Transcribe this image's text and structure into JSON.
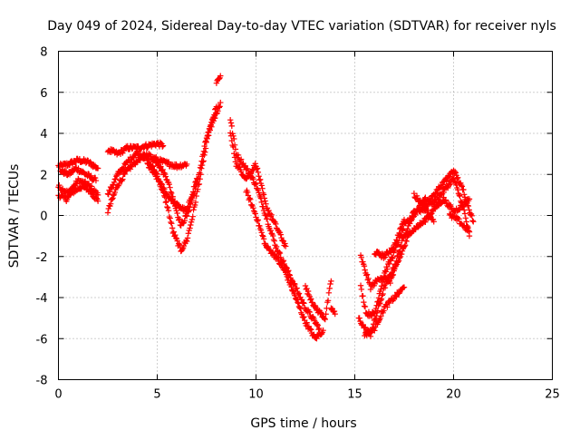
{
  "chart_data": {
    "type": "scatter",
    "title": "Day 049 of 2024, Sidereal Day-to-day VTEC variation (SDTVAR) for receiver nyls",
    "xlabel": "GPS time / hours",
    "ylabel": "SDTVAR / TECUs",
    "xlim": [
      0,
      25
    ],
    "ylim": [
      -8,
      8
    ],
    "xticks": [
      0,
      5,
      10,
      15,
      20,
      25
    ],
    "yticks": [
      -8,
      -6,
      -4,
      -2,
      0,
      2,
      4,
      6,
      8
    ],
    "xtick_labels": [
      "0",
      "5",
      "10",
      "15",
      "20",
      "25"
    ],
    "ytick_labels": [
      "-8",
      "-6",
      "-4",
      "-2",
      "0",
      "2",
      "4",
      "6",
      "8"
    ],
    "grid": true,
    "marker": "+",
    "color": "#ff0000",
    "series": [
      {
        "name": "SDTVAR",
        "tracks": [
          [
            [
              0,
              2.4
            ],
            [
              0.5,
              2.5
            ],
            [
              1.0,
              2.7
            ],
            [
              1.5,
              2.6
            ],
            [
              2.0,
              2.3
            ]
          ],
          [
            [
              0,
              1.4
            ],
            [
              0.5,
              1.1
            ],
            [
              1.0,
              1.7
            ],
            [
              1.5,
              1.5
            ],
            [
              2.0,
              1.0
            ]
          ],
          [
            [
              0,
              1.0
            ],
            [
              0.4,
              0.8
            ],
            [
              0.8,
              1.2
            ],
            [
              1.2,
              1.4
            ],
            [
              1.6,
              1.2
            ],
            [
              2.0,
              0.7
            ]
          ],
          [
            [
              0.1,
              2.2
            ],
            [
              0.5,
              2.0
            ],
            [
              0.9,
              2.3
            ],
            [
              1.4,
              2.0
            ],
            [
              1.9,
              1.7
            ]
          ],
          [
            [
              2.5,
              3.2
            ],
            [
              3.0,
              3.0
            ],
            [
              3.5,
              3.3
            ],
            [
              4.0,
              3.3
            ],
            [
              4.5,
              3.4
            ],
            [
              5.0,
              3.5
            ],
            [
              5.3,
              3.4
            ]
          ],
          [
            [
              2.5,
              0.2
            ],
            [
              3.0,
              1.5
            ],
            [
              3.5,
              2.2
            ],
            [
              4.0,
              2.7
            ],
            [
              4.5,
              3.0
            ],
            [
              5.0,
              2.6
            ],
            [
              5.5,
              1.8
            ],
            [
              5.9,
              0.5
            ],
            [
              6.2,
              -0.5
            ],
            [
              6.5,
              0.0
            ],
            [
              7.0,
              1.5
            ],
            [
              7.5,
              3.8
            ],
            [
              8.0,
              5.0
            ],
            [
              8.2,
              5.5
            ]
          ],
          [
            [
              2.5,
              1.0
            ],
            [
              3.0,
              2.0
            ],
            [
              3.5,
              2.6
            ],
            [
              4.0,
              3.1
            ],
            [
              4.5,
              2.7
            ],
            [
              5.0,
              2.0
            ],
            [
              5.5,
              0.5
            ],
            [
              5.8,
              -0.8
            ],
            [
              6.2,
              -1.7
            ],
            [
              6.5,
              -1.2
            ],
            [
              6.8,
              0.0
            ],
            [
              7.2,
              2.0
            ],
            [
              7.6,
              4.0
            ],
            [
              8.0,
              5.3
            ]
          ],
          [
            [
              4.5,
              2.5
            ],
            [
              5.0,
              1.8
            ],
            [
              5.5,
              1.0
            ],
            [
              6.0,
              0.5
            ],
            [
              6.5,
              0.2
            ],
            [
              7.0,
              1.8
            ]
          ],
          [
            [
              4.8,
              2.8
            ],
            [
              5.3,
              2.6
            ],
            [
              6.0,
              2.4
            ],
            [
              6.5,
              2.5
            ]
          ],
          [
            [
              8.0,
              6.5
            ],
            [
              8.2,
              6.8
            ]
          ],
          [
            [
              8.7,
              4.7
            ],
            [
              9.0,
              3.0
            ],
            [
              9.5,
              2.3
            ],
            [
              10.0,
              1.5
            ],
            [
              10.5,
              0.0
            ],
            [
              11.0,
              -1.5
            ],
            [
              11.5,
              -2.5
            ],
            [
              12.0,
              -3.5
            ],
            [
              12.5,
              -4.5
            ],
            [
              13.0,
              -5.2
            ],
            [
              13.2,
              -5.5
            ]
          ],
          [
            [
              8.7,
              4.0
            ],
            [
              9.0,
              2.5
            ],
            [
              9.5,
              1.8
            ],
            [
              10.0,
              2.5
            ],
            [
              10.5,
              0.5
            ],
            [
              11.0,
              -0.5
            ],
            [
              11.5,
              -1.5
            ]
          ],
          [
            [
              9.5,
              1.2
            ],
            [
              10.0,
              0.0
            ],
            [
              10.5,
              -1.5
            ],
            [
              11.0,
              -2.0
            ],
            [
              11.5,
              -2.8
            ],
            [
              12.0,
              -4.0
            ],
            [
              12.5,
              -5.2
            ],
            [
              13.0,
              -6.0
            ],
            [
              13.4,
              -5.6
            ]
          ],
          [
            [
              12.5,
              -3.5
            ],
            [
              13.0,
              -4.5
            ],
            [
              13.5,
              -5.0
            ],
            [
              13.8,
              -3.2
            ]
          ],
          [
            [
              13.8,
              -4.5
            ],
            [
              14.0,
              -4.8
            ]
          ],
          [
            [
              15.2,
              -5.0
            ],
            [
              15.5,
              -5.5
            ],
            [
              15.8,
              -5.8
            ],
            [
              16.2,
              -4.5
            ],
            [
              16.5,
              -3.5
            ],
            [
              17.0,
              -2.5
            ],
            [
              17.5,
              -1.0
            ],
            [
              18.0,
              0.2
            ],
            [
              18.5,
              0.3
            ],
            [
              19.0,
              1.0
            ],
            [
              19.5,
              1.6
            ],
            [
              20.0,
              2.2
            ],
            [
              20.5,
              1.2
            ],
            [
              21.0,
              -0.3
            ]
          ],
          [
            [
              15.3,
              -3.5
            ],
            [
              15.6,
              -4.8
            ],
            [
              16.0,
              -4.8
            ],
            [
              16.5,
              -2.8
            ],
            [
              17.0,
              -1.8
            ],
            [
              17.5,
              -0.5
            ],
            [
              18.0,
              0.0
            ],
            [
              18.5,
              0.8
            ],
            [
              19.0,
              0.6
            ],
            [
              19.5,
              1.2
            ],
            [
              20.0,
              1.8
            ],
            [
              20.5,
              0.4
            ],
            [
              20.8,
              -1.0
            ]
          ],
          [
            [
              15.3,
              -2.0
            ],
            [
              15.8,
              -3.5
            ],
            [
              16.3,
              -3.0
            ],
            [
              16.8,
              -3.2
            ],
            [
              17.3,
              -2.0
            ],
            [
              17.8,
              -0.8
            ],
            [
              18.5,
              -0.3
            ],
            [
              19.0,
              0.3
            ],
            [
              19.5,
              0.8
            ],
            [
              20.0,
              0.2
            ],
            [
              20.5,
              0.5
            ],
            [
              20.8,
              0.8
            ]
          ],
          [
            [
              15.5,
              -5.8
            ],
            [
              16.0,
              -5.5
            ],
            [
              16.5,
              -4.5
            ],
            [
              17.0,
              -4.0
            ],
            [
              17.5,
              -3.5
            ]
          ],
          [
            [
              16.0,
              -1.8
            ],
            [
              16.5,
              -2.0
            ],
            [
              17.0,
              -1.5
            ],
            [
              17.5,
              -0.2
            ]
          ],
          [
            [
              18.0,
              1.0
            ],
            [
              18.5,
              0.5
            ],
            [
              19.0,
              -0.3
            ]
          ],
          [
            [
              19.8,
              0.0
            ],
            [
              20.2,
              -0.2
            ],
            [
              20.5,
              -0.5
            ],
            [
              20.8,
              -0.8
            ]
          ]
        ]
      }
    ]
  }
}
